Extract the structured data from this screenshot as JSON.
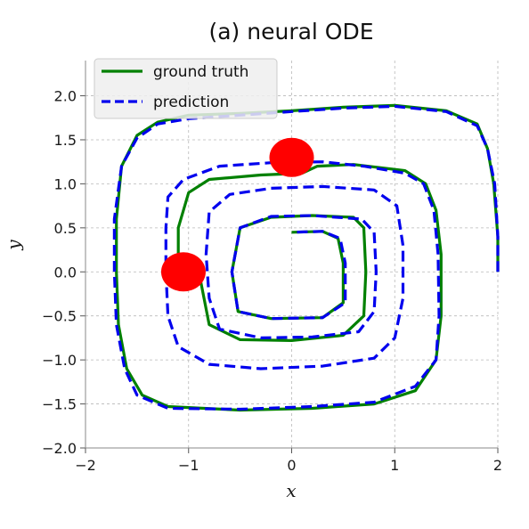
{
  "chart_data": {
    "type": "line",
    "title": "(a) neural ODE",
    "xlabel": "x",
    "ylabel": "y",
    "xlim": [
      -2,
      2
    ],
    "ylim": [
      -2,
      2.4
    ],
    "xticks": [
      -2,
      -1,
      0,
      1,
      2
    ],
    "xtick_labels": [
      "−2",
      "−1",
      "0",
      "1",
      "2"
    ],
    "yticks": [
      -2.0,
      -1.5,
      -1.0,
      -0.5,
      0.0,
      0.5,
      1.0,
      1.5,
      2.0
    ],
    "ytick_labels": [
      "−2.0",
      "−1.5",
      "−1.0",
      "−0.5",
      "0.0",
      "0.5",
      "1.0",
      "1.5",
      "2.0"
    ],
    "grid": true,
    "legend_position": "top-left",
    "series": [
      {
        "name": "ground truth",
        "color": "#008000",
        "style": "solid",
        "points": [
          [
            2.0,
            0.0
          ],
          [
            2.0,
            0.4
          ],
          [
            1.96,
            1.0
          ],
          [
            1.9,
            1.4
          ],
          [
            1.8,
            1.68
          ],
          [
            1.5,
            1.83
          ],
          [
            1.0,
            1.89
          ],
          [
            0.5,
            1.87
          ],
          [
            0.0,
            1.83
          ],
          [
            -0.5,
            1.8
          ],
          [
            -1.0,
            1.78
          ],
          [
            -1.3,
            1.7
          ],
          [
            -1.5,
            1.55
          ],
          [
            -1.65,
            1.2
          ],
          [
            -1.7,
            0.6
          ],
          [
            -1.7,
            0.0
          ],
          [
            -1.68,
            -0.6
          ],
          [
            -1.6,
            -1.1
          ],
          [
            -1.45,
            -1.4
          ],
          [
            -1.2,
            -1.53
          ],
          [
            -0.5,
            -1.57
          ],
          [
            0.2,
            -1.55
          ],
          [
            0.8,
            -1.5
          ],
          [
            1.2,
            -1.35
          ],
          [
            1.4,
            -1.0
          ],
          [
            1.45,
            -0.5
          ],
          [
            1.45,
            0.2
          ],
          [
            1.4,
            0.7
          ],
          [
            1.3,
            1.0
          ],
          [
            1.1,
            1.15
          ],
          [
            0.6,
            1.22
          ],
          [
            0.25,
            1.2
          ],
          [
            0.1,
            1.12
          ],
          [
            -0.3,
            1.1
          ],
          [
            -0.8,
            1.05
          ],
          [
            -1.0,
            0.9
          ],
          [
            -1.1,
            0.5
          ],
          [
            -1.1,
            0.2
          ],
          [
            -1.0,
            0.1
          ],
          [
            -0.9,
            0.0
          ],
          [
            -0.85,
            -0.3
          ],
          [
            -0.8,
            -0.6
          ],
          [
            -0.5,
            -0.77
          ],
          [
            0.0,
            -0.78
          ],
          [
            0.5,
            -0.72
          ],
          [
            0.7,
            -0.5
          ],
          [
            0.72,
            0.0
          ],
          [
            0.7,
            0.5
          ],
          [
            0.6,
            0.62
          ],
          [
            0.2,
            0.64
          ],
          [
            -0.2,
            0.62
          ],
          [
            -0.5,
            0.5
          ],
          [
            -0.58,
            0.0
          ],
          [
            -0.52,
            -0.45
          ],
          [
            -0.2,
            -0.53
          ],
          [
            0.3,
            -0.52
          ],
          [
            0.5,
            -0.35
          ],
          [
            0.5,
            0.1
          ],
          [
            0.45,
            0.38
          ],
          [
            0.3,
            0.46
          ],
          [
            0.0,
            0.45
          ]
        ]
      },
      {
        "name": "prediction",
        "color": "#0000ee",
        "style": "dashed",
        "points": [
          [
            2.0,
            0.0
          ],
          [
            2.0,
            0.4
          ],
          [
            1.97,
            1.0
          ],
          [
            1.9,
            1.4
          ],
          [
            1.8,
            1.66
          ],
          [
            1.5,
            1.82
          ],
          [
            1.0,
            1.88
          ],
          [
            0.5,
            1.86
          ],
          [
            0.0,
            1.82
          ],
          [
            -0.5,
            1.78
          ],
          [
            -1.0,
            1.74
          ],
          [
            -1.3,
            1.68
          ],
          [
            -1.5,
            1.52
          ],
          [
            -1.65,
            1.2
          ],
          [
            -1.72,
            0.6
          ],
          [
            -1.72,
            0.0
          ],
          [
            -1.7,
            -0.6
          ],
          [
            -1.62,
            -1.1
          ],
          [
            -1.5,
            -1.4
          ],
          [
            -1.2,
            -1.55
          ],
          [
            -0.5,
            -1.56
          ],
          [
            0.2,
            -1.53
          ],
          [
            0.8,
            -1.48
          ],
          [
            1.2,
            -1.3
          ],
          [
            1.4,
            -1.0
          ],
          [
            1.43,
            -0.5
          ],
          [
            1.42,
            0.2
          ],
          [
            1.38,
            0.7
          ],
          [
            1.28,
            1.0
          ],
          [
            1.1,
            1.12
          ],
          [
            0.7,
            1.2
          ],
          [
            0.3,
            1.25
          ],
          [
            -0.2,
            1.24
          ],
          [
            -0.7,
            1.2
          ],
          [
            -1.05,
            1.05
          ],
          [
            -1.2,
            0.85
          ],
          [
            -1.22,
            0.5
          ],
          [
            -1.22,
            0.0
          ],
          [
            -1.2,
            -0.5
          ],
          [
            -1.1,
            -0.85
          ],
          [
            -0.8,
            -1.05
          ],
          [
            -0.3,
            -1.1
          ],
          [
            0.3,
            -1.07
          ],
          [
            0.8,
            -0.98
          ],
          [
            1.0,
            -0.75
          ],
          [
            1.08,
            -0.3
          ],
          [
            1.08,
            0.3
          ],
          [
            1.02,
            0.75
          ],
          [
            0.8,
            0.93
          ],
          [
            0.3,
            0.97
          ],
          [
            -0.2,
            0.95
          ],
          [
            -0.6,
            0.88
          ],
          [
            -0.8,
            0.68
          ],
          [
            -0.83,
            0.2
          ],
          [
            -0.8,
            -0.3
          ],
          [
            -0.7,
            -0.65
          ],
          [
            -0.3,
            -0.75
          ],
          [
            0.2,
            -0.74
          ],
          [
            0.65,
            -0.68
          ],
          [
            0.8,
            -0.45
          ],
          [
            0.82,
            0.0
          ],
          [
            0.8,
            0.45
          ],
          [
            0.68,
            0.6
          ],
          [
            0.2,
            0.64
          ],
          [
            -0.2,
            0.63
          ],
          [
            -0.5,
            0.5
          ],
          [
            -0.58,
            0.0
          ],
          [
            -0.52,
            -0.45
          ],
          [
            -0.2,
            -0.53
          ],
          [
            0.3,
            -0.52
          ],
          [
            0.52,
            -0.35
          ],
          [
            0.52,
            0.1
          ],
          [
            0.47,
            0.38
          ],
          [
            0.3,
            0.46
          ],
          [
            0.0,
            0.45
          ]
        ]
      }
    ],
    "markers": [
      {
        "x": 0.0,
        "y": 1.3,
        "color": "#ff0000"
      },
      {
        "x": -1.05,
        "y": 0.0,
        "color": "#ff0000"
      }
    ]
  }
}
